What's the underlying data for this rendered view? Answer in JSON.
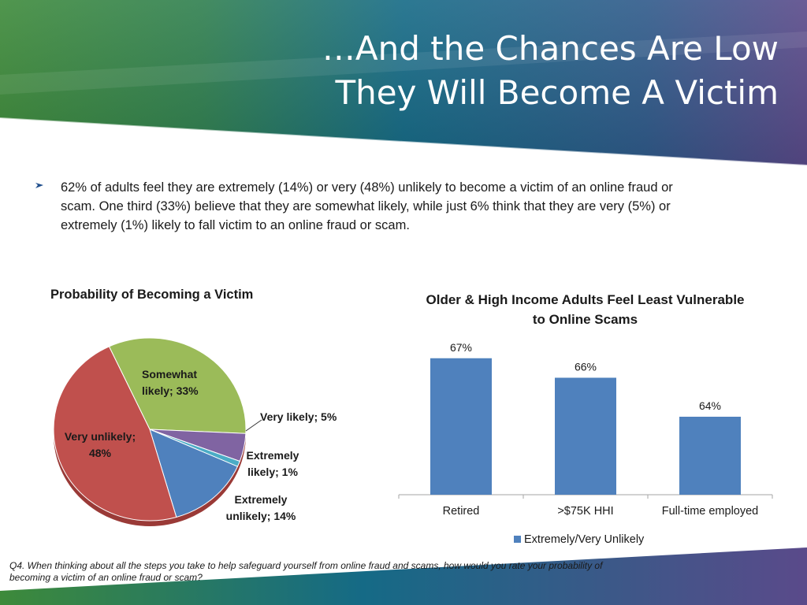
{
  "slide": {
    "title_line1": "…And the Chances Are Low",
    "title_line2": "They Will Become A Victim",
    "bullet_text": "62% of adults feel they are extremely (14%) or very (48%) unlikely to become a victim of an online fraud or scam.  One third (33%) believe that they are somewhat likely, while just 6% think that they are very (5%) or extremely (1%) likely to fall victim to an online fraud or scam.",
    "footnote": "Q4. When thinking about all the steps you take to help safeguard yourself from online fraud and scams, how would you rate your probability of becoming a victim of an online fraud or scam?"
  },
  "colors": {
    "banner_green": "#3d8a3a",
    "banner_teal": "#1a6f86",
    "banner_purple": "#5a4a8a",
    "bar_blue": "#4f81bd"
  },
  "chart_data": [
    {
      "type": "pie",
      "title": "Probability of Becoming a Victim",
      "slices": [
        {
          "label": "Somewhat likely",
          "value": 33,
          "display": "Somewhat likely; 33%",
          "color": "#9bbb59"
        },
        {
          "label": "Very likely",
          "value": 5,
          "display": "Very likely; 5%",
          "color": "#8064a2"
        },
        {
          "label": "Extremely likely",
          "value": 1,
          "display": "Extremely likely; 1%",
          "color": "#4bacc6"
        },
        {
          "label": "Extremely unlikely",
          "value": 14,
          "display": "Extremely unlikely; 14%",
          "color": "#4f81bd"
        },
        {
          "label": "Very unlikely",
          "value": 48,
          "display": "Very unlikely; 48%",
          "color": "#c0504d"
        }
      ]
    },
    {
      "type": "bar",
      "title": "Older & High Income Adults Feel Least Vulnerable to Online Scams",
      "categories": [
        "Retired",
        ">$75K HHI",
        "Full-time employed"
      ],
      "series": [
        {
          "name": "Extremely/Very Unlikely",
          "values": [
            67,
            66,
            64
          ],
          "labels": [
            "67%",
            "66%",
            "64%"
          ],
          "color": "#4f81bd"
        }
      ],
      "legend_position": "bottom",
      "grid": false
    }
  ]
}
